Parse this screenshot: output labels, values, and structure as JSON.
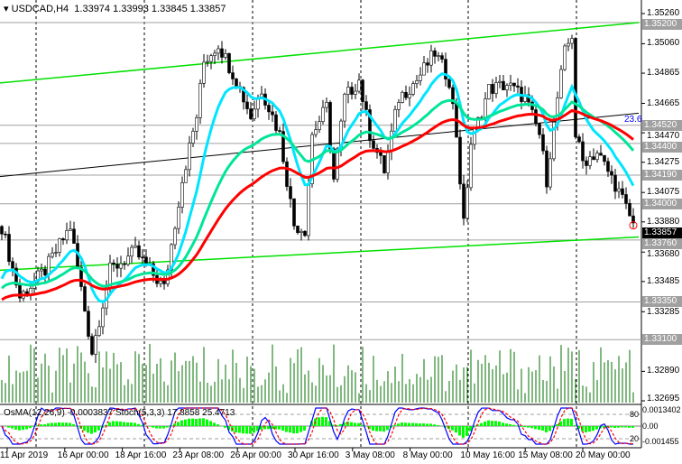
{
  "header": {
    "symbol": "USDCAD,H4",
    "ohlc": "1.33974 1.33993 1.33845 1.33857"
  },
  "indicator": {
    "label": "OsMA(12,26,9) -0.0003837 Stoch(5,3,3) 17.8858 25.4713",
    "axis": [
      "0.0013402",
      "80",
      "0.00",
      "20",
      "-0.001455"
    ]
  },
  "fib_label": "23.6",
  "current_price": "1.33857",
  "colors": {
    "fast_ma": "#00e5ff",
    "mid_ma": "#00e59a",
    "slow_ma": "#ff0000",
    "trend": "#00e000",
    "volume": "#007000",
    "osma": "#00ff00",
    "stoch_main": "#0000ff",
    "stoch_signal": "#ff0000"
  },
  "chart_data": {
    "type": "candlestick",
    "title": "USDCAD,H4",
    "ylim": [
      1.32695,
      1.3526
    ],
    "y_ticks": [
      "1.35260",
      "1.35060",
      "1.34865",
      "1.34665",
      "1.34470",
      "1.34275",
      "1.34075",
      "1.33880",
      "1.33680",
      "1.33485",
      "1.33285",
      "1.32890",
      "1.32695"
    ],
    "levels": [
      "1.35200",
      "1.34520",
      "1.34400",
      "1.34190",
      "1.34000",
      "1.33760",
      "1.33350",
      "1.33100"
    ],
    "x_ticks": [
      "11 Apr 2019",
      "16 Apr 00:00",
      "18 Apr 16:00",
      "23 Apr 08:00",
      "26 Apr 00:00",
      "30 Apr 16:00",
      "3 May 08:00",
      "8 May 00:00",
      "10 May 16:00",
      "15 May 08:00",
      "20 May 00:00"
    ],
    "close_keypoints": [
      [
        0,
        1.3385
      ],
      [
        5,
        1.3338
      ],
      [
        12,
        1.3356
      ],
      [
        19,
        1.3385
      ],
      [
        25,
        1.3302
      ],
      [
        30,
        1.3356
      ],
      [
        37,
        1.3368
      ],
      [
        45,
        1.3344
      ],
      [
        50,
        1.3416
      ],
      [
        54,
        1.3458
      ],
      [
        56,
        1.3494
      ],
      [
        60,
        1.3506
      ],
      [
        65,
        1.3482
      ],
      [
        69,
        1.3458
      ],
      [
        72,
        1.3476
      ],
      [
        77,
        1.3446
      ],
      [
        81,
        1.3386
      ],
      [
        84,
        1.3383
      ],
      [
        86,
        1.3446
      ],
      [
        90,
        1.3464
      ],
      [
        92,
        1.3416
      ],
      [
        95,
        1.347
      ],
      [
        99,
        1.3482
      ],
      [
        102,
        1.3446
      ],
      [
        106,
        1.3422
      ],
      [
        110,
        1.347
      ],
      [
        115,
        1.3482
      ],
      [
        120,
        1.35
      ],
      [
        124,
        1.3482
      ],
      [
        126,
        1.3446
      ],
      [
        128,
        1.3386
      ],
      [
        130,
        1.344
      ],
      [
        135,
        1.3476
      ],
      [
        140,
        1.3479
      ],
      [
        145,
        1.347
      ],
      [
        149,
        1.3446
      ],
      [
        151,
        1.3416
      ],
      [
        154,
        1.347
      ],
      [
        156,
        1.35
      ],
      [
        158,
        1.3512
      ],
      [
        159,
        1.3446
      ],
      [
        161,
        1.3428
      ],
      [
        165,
        1.3434
      ],
      [
        170,
        1.3413
      ],
      [
        174,
        1.3392
      ],
      [
        175,
        1.3386
      ]
    ],
    "trendlines": {
      "upper": [
        1.348,
        1.352
      ],
      "middle": [
        1.3418,
        1.346
      ],
      "lower": [
        1.3356,
        1.3378
      ]
    },
    "moving_averages": [
      "fast",
      "mid",
      "slow"
    ]
  }
}
